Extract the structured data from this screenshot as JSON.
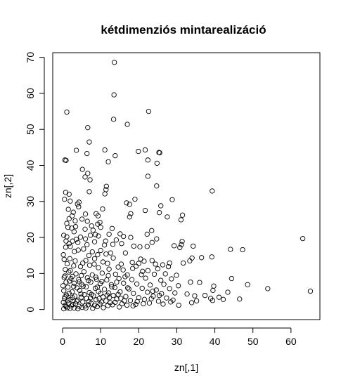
{
  "chart_data": {
    "type": "scatter",
    "title": "kétdimenziós mintarealizáció",
    "xlabel": "zn[,1]",
    "ylabel": "zn[,2]",
    "xlim": [
      -2.6,
      67.6
    ],
    "ylim": [
      -2.8,
      71.3
    ],
    "xticks": [
      0,
      10,
      20,
      30,
      40,
      50,
      60
    ],
    "yticks": [
      0,
      10,
      20,
      30,
      40,
      50,
      60,
      70
    ],
    "marker": "open-circle",
    "point_color": "#000000",
    "grid": false,
    "legend": "none",
    "points": [
      [
        13.6,
        68.6
      ],
      [
        13.5,
        59.6
      ],
      [
        1.1,
        54.8
      ],
      [
        22.6,
        55.0
      ],
      [
        13.4,
        52.8
      ],
      [
        6.6,
        50.5
      ],
      [
        17.0,
        51.4
      ],
      [
        7.0,
        46.5
      ],
      [
        3.6,
        44.2
      ],
      [
        11.1,
        44.3
      ],
      [
        19.9,
        43.9
      ],
      [
        21.7,
        44.3
      ],
      [
        6.4,
        43.3
      ],
      [
        13.8,
        42.7
      ],
      [
        25.3,
        43.6
      ],
      [
        25.5,
        43.5
      ],
      [
        0.6,
        41.5
      ],
      [
        0.9,
        41.4
      ],
      [
        12.0,
        41.0
      ],
      [
        22.4,
        41.5
      ],
      [
        24.8,
        40.6
      ],
      [
        5.2,
        38.9
      ],
      [
        6.6,
        37.8
      ],
      [
        5.9,
        36.8
      ],
      [
        22.4,
        37.0
      ],
      [
        7.2,
        36.0
      ],
      [
        11.5,
        34.2
      ],
      [
        24.7,
        34.3
      ],
      [
        11.4,
        33.3
      ],
      [
        11.1,
        32.1
      ],
      [
        39.3,
        32.9
      ],
      [
        0.8,
        32.5
      ],
      [
        1.7,
        32.0
      ],
      [
        7.0,
        32.7
      ],
      [
        2.0,
        30.1
      ],
      [
        0.5,
        30.6
      ],
      [
        3.9,
        29.3
      ],
      [
        4.3,
        29.8
      ],
      [
        16.8,
        29.6
      ],
      [
        17.6,
        29.2
      ],
      [
        19.0,
        30.6
      ],
      [
        28.8,
        30.5
      ],
      [
        4.2,
        28.5
      ],
      [
        10.5,
        27.9
      ],
      [
        1.5,
        27.8
      ],
      [
        2.8,
        27.0
      ],
      [
        21.7,
        27.5
      ],
      [
        25.8,
        28.8
      ],
      [
        25.4,
        26.9
      ],
      [
        17.9,
        26.6
      ],
      [
        2.5,
        26.0
      ],
      [
        6.0,
        26.5
      ],
      [
        8.8,
        26.6
      ],
      [
        9.3,
        26.0
      ],
      [
        31.5,
        26.2
      ],
      [
        31.1,
        24.9
      ],
      [
        1.7,
        25.2
      ],
      [
        5.1,
        25.1
      ],
      [
        6.5,
        24.5
      ],
      [
        9.8,
        24.2
      ],
      [
        17.6,
        25.7
      ],
      [
        27.5,
        25.7
      ],
      [
        3.3,
        24.6
      ],
      [
        7.6,
        23.2
      ],
      [
        1.4,
        22.8
      ],
      [
        2.4,
        22.6
      ],
      [
        8.0,
        22.0
      ],
      [
        10.0,
        22.8
      ],
      [
        13.0,
        22.5
      ],
      [
        3.4,
        23.0
      ],
      [
        23.4,
        21.9
      ],
      [
        0.3,
        20.6
      ],
      [
        1.1,
        20.2
      ],
      [
        4.7,
        20.1
      ],
      [
        7.3,
        20.6
      ],
      [
        9.4,
        20.4
      ],
      [
        15.1,
        21.0
      ],
      [
        16.0,
        20.3
      ],
      [
        17.9,
        20.0
      ],
      [
        22.2,
        20.9
      ],
      [
        63.1,
        19.7
      ],
      [
        24.7,
        19.6
      ],
      [
        3.6,
        19.5
      ],
      [
        6.0,
        19.6
      ],
      [
        8.4,
        18.8
      ],
      [
        11.3,
        19.0
      ],
      [
        14.1,
        19.3
      ],
      [
        1.7,
        18.3
      ],
      [
        2.6,
        19.0
      ],
      [
        11.0,
        17.9
      ],
      [
        13.2,
        18.1
      ],
      [
        15.5,
        18.3
      ],
      [
        18.7,
        17.6
      ],
      [
        20.3,
        17.4
      ],
      [
        22.2,
        17.5
      ],
      [
        23.5,
        18.6
      ],
      [
        31.4,
        18.9
      ],
      [
        31.2,
        18.0
      ],
      [
        29.3,
        17.7
      ],
      [
        34.3,
        17.6
      ],
      [
        30.8,
        17.2
      ],
      [
        0.8,
        17.3
      ],
      [
        4.1,
        16.5
      ],
      [
        5.5,
        16.8
      ],
      [
        7.8,
        16.0
      ],
      [
        10.0,
        16.4
      ],
      [
        12.6,
        15.7
      ],
      [
        16.5,
        15.7
      ],
      [
        20.5,
        14.0
      ],
      [
        21.4,
        13.4
      ],
      [
        23.5,
        13.6
      ],
      [
        44.1,
        16.7
      ],
      [
        47.3,
        16.6
      ],
      [
        36.5,
        14.4
      ],
      [
        34.0,
        14.3
      ],
      [
        33.4,
        13.5
      ],
      [
        31.7,
        12.9
      ],
      [
        39.2,
        14.6
      ],
      [
        28.1,
        12.9
      ],
      [
        26.3,
        12.4
      ],
      [
        27.8,
        11.9
      ],
      [
        0.2,
        15.2
      ],
      [
        1.9,
        14.1
      ],
      [
        3.3,
        13.5
      ],
      [
        6.1,
        13.6
      ],
      [
        8.4,
        14.1
      ],
      [
        10.6,
        13.2
      ],
      [
        13.3,
        14.3
      ],
      [
        15.4,
        12.6
      ],
      [
        18.3,
        13.1
      ],
      [
        2.9,
        12.1
      ],
      [
        4.7,
        11.9
      ],
      [
        7.1,
        12.3
      ],
      [
        9.4,
        11.6
      ],
      [
        12.2,
        11.2
      ],
      [
        15.9,
        11.0
      ],
      [
        19.3,
        12.0
      ],
      [
        22.4,
        10.8
      ],
      [
        25.0,
        11.3
      ],
      [
        0.7,
        11.1
      ],
      [
        1.6,
        10.4
      ],
      [
        3.5,
        9.9
      ],
      [
        5.6,
        10.5
      ],
      [
        7.8,
        9.6
      ],
      [
        10.4,
        10.1
      ],
      [
        13.9,
        9.8
      ],
      [
        17.0,
        9.6
      ],
      [
        20.7,
        9.7
      ],
      [
        24.1,
        9.8
      ],
      [
        27.0,
        9.9
      ],
      [
        29.9,
        9.5
      ],
      [
        0.4,
        8.9
      ],
      [
        2.2,
        8.6
      ],
      [
        4.2,
        8.3
      ],
      [
        6.5,
        8.8
      ],
      [
        8.9,
        8.4
      ],
      [
        11.6,
        8.2
      ],
      [
        14.8,
        8.6
      ],
      [
        18.2,
        8.3
      ],
      [
        21.8,
        8.7
      ],
      [
        25.8,
        8.1
      ],
      [
        28.6,
        8.5
      ],
      [
        44.4,
        8.6
      ],
      [
        48.6,
        6.9
      ],
      [
        53.9,
        5.8
      ],
      [
        65.1,
        5.1
      ],
      [
        39.7,
        6.5
      ],
      [
        39.5,
        5.3
      ],
      [
        43.4,
        4.8
      ],
      [
        33.6,
        7.6
      ],
      [
        36.0,
        7.5
      ],
      [
        0.9,
        7.6
      ],
      [
        3.0,
        7.3
      ],
      [
        5.0,
        7.0
      ],
      [
        7.4,
        7.6
      ],
      [
        9.9,
        7.2
      ],
      [
        12.8,
        6.9
      ],
      [
        16.0,
        7.3
      ],
      [
        19.5,
        7.1
      ],
      [
        23.0,
        6.8
      ],
      [
        26.6,
        7.0
      ],
      [
        30.4,
        6.6
      ],
      [
        1.4,
        6.2
      ],
      [
        3.8,
        6.0
      ],
      [
        6.2,
        6.3
      ],
      [
        8.6,
        5.9
      ],
      [
        11.0,
        5.6
      ],
      [
        13.7,
        6.1
      ],
      [
        17.4,
        5.7
      ],
      [
        20.9,
        5.9
      ],
      [
        24.6,
        5.4
      ],
      [
        28.1,
        5.8
      ],
      [
        0.3,
        5.2
      ],
      [
        2.5,
        4.9
      ],
      [
        4.5,
        5.3
      ],
      [
        7.0,
        4.7
      ],
      [
        9.4,
        5.0
      ],
      [
        12.1,
        4.6
      ],
      [
        15.1,
        4.9
      ],
      [
        18.6,
        4.5
      ],
      [
        22.3,
        4.8
      ],
      [
        26.0,
        4.4
      ],
      [
        29.5,
        4.6
      ],
      [
        32.7,
        4.3
      ],
      [
        1.0,
        4.0
      ],
      [
        3.2,
        3.7
      ],
      [
        5.7,
        4.1
      ],
      [
        8.1,
        3.8
      ],
      [
        10.6,
        3.5
      ],
      [
        13.3,
        3.9
      ],
      [
        16.6,
        3.6
      ],
      [
        20.0,
        3.3
      ],
      [
        23.8,
        3.7
      ],
      [
        27.3,
        3.2
      ],
      [
        34.7,
        3.8
      ],
      [
        38.9,
        3.1
      ],
      [
        46.5,
        2.9
      ],
      [
        0.5,
        3.0
      ],
      [
        2.0,
        2.8
      ],
      [
        4.0,
        2.6
      ],
      [
        6.3,
        3.1
      ],
      [
        8.8,
        2.7
      ],
      [
        11.4,
        2.4
      ],
      [
        14.2,
        2.9
      ],
      [
        17.8,
        2.5
      ],
      [
        21.5,
        2.8
      ],
      [
        25.2,
        2.3
      ],
      [
        29.0,
        2.6
      ],
      [
        35.2,
        2.4
      ],
      [
        39.4,
        2.5
      ],
      [
        0.2,
        2.0
      ],
      [
        1.6,
        1.8
      ],
      [
        3.4,
        1.6
      ],
      [
        5.3,
        2.1
      ],
      [
        7.5,
        1.7
      ],
      [
        9.8,
        1.5
      ],
      [
        12.5,
        1.9
      ],
      [
        15.6,
        1.6
      ],
      [
        19.2,
        1.4
      ],
      [
        22.8,
        1.8
      ],
      [
        26.4,
        1.5
      ],
      [
        0.7,
        1.2
      ],
      [
        2.3,
        1.0
      ],
      [
        4.3,
        0.9
      ],
      [
        6.7,
        1.3
      ],
      [
        9.1,
        0.8
      ],
      [
        11.9,
        1.1
      ],
      [
        14.9,
        0.7
      ],
      [
        18.5,
        1.0
      ],
      [
        21.2,
        1.6
      ],
      [
        1.2,
        0.5
      ],
      [
        3.0,
        0.4
      ],
      [
        5.1,
        0.6
      ],
      [
        7.9,
        0.3
      ],
      [
        10.7,
        0.5
      ],
      [
        0.3,
        0.2
      ],
      [
        1.9,
        0.3
      ],
      [
        4.0,
        0.2
      ],
      [
        6.1,
        0.4
      ],
      [
        0.9,
        0.8
      ],
      [
        2.7,
        1.4
      ],
      [
        5.9,
        1.0
      ],
      [
        8.4,
        1.2
      ],
      [
        13.1,
        1.3
      ],
      [
        16.9,
        1.2
      ],
      [
        1.4,
        2.5
      ],
      [
        3.7,
        2.3
      ],
      [
        6.9,
        2.2
      ],
      [
        10.2,
        2.1
      ],
      [
        13.8,
        2.0
      ],
      [
        0.6,
        3.5
      ],
      [
        2.6,
        3.3
      ],
      [
        4.9,
        3.4
      ],
      [
        7.3,
        3.2
      ],
      [
        9.6,
        3.0
      ],
      [
        12.3,
        3.3
      ],
      [
        15.3,
        3.1
      ],
      [
        1.7,
        4.5
      ],
      [
        4.8,
        4.3
      ],
      [
        7.6,
        4.2
      ],
      [
        10.0,
        4.4
      ],
      [
        11.7,
        4.0
      ],
      [
        14.6,
        4.2
      ],
      [
        0.1,
        6.6
      ],
      [
        2.9,
        6.4
      ],
      [
        5.4,
        6.5
      ],
      [
        9.1,
        6.2
      ],
      [
        12.9,
        6.3
      ],
      [
        17.1,
        6.0
      ],
      [
        1.8,
        7.9
      ],
      [
        4.4,
        7.7
      ],
      [
        6.8,
        8.0
      ],
      [
        10.3,
        7.8
      ],
      [
        14.2,
        7.6
      ],
      [
        0.6,
        9.3
      ],
      [
        2.6,
        9.2
      ],
      [
        4.9,
        9.4
      ],
      [
        8.7,
        9.0
      ],
      [
        12.0,
        9.4
      ],
      [
        16.4,
        9.1
      ],
      [
        1.2,
        12.7
      ],
      [
        2.0,
        10.8
      ],
      [
        5.3,
        12.9
      ],
      [
        8.3,
        12.6
      ],
      [
        11.8,
        12.8
      ],
      [
        14.6,
        11.8
      ],
      [
        0.4,
        13.9
      ],
      [
        6.9,
        15.0
      ],
      [
        9.2,
        15.2
      ],
      [
        11.4,
        15.4
      ],
      [
        3.1,
        16.1
      ],
      [
        2.0,
        17.5
      ],
      [
        6.4,
        18.0
      ],
      [
        8.6,
        20.8
      ],
      [
        12.2,
        20.9
      ],
      [
        5.9,
        22.3
      ],
      [
        4.0,
        18.6
      ],
      [
        0.9,
        19.0
      ],
      [
        3.0,
        21.6
      ],
      [
        9.2,
        23.7
      ],
      [
        1.1,
        23.9
      ],
      [
        18.4,
        11.4
      ],
      [
        20.0,
        12.8
      ],
      [
        21.0,
        10.6
      ],
      [
        24.4,
        12.6
      ],
      [
        25.4,
        3.9
      ],
      [
        23.3,
        3.0
      ],
      [
        28.4,
        2.1
      ],
      [
        33.9,
        1.9
      ],
      [
        37.4,
        3.9
      ],
      [
        41.1,
        3.4
      ],
      [
        42.2,
        2.8
      ],
      [
        30.5,
        1.2
      ],
      [
        19.6,
        2.2
      ],
      [
        16.2,
        2.4
      ],
      [
        23.7,
        5.1
      ]
    ]
  }
}
